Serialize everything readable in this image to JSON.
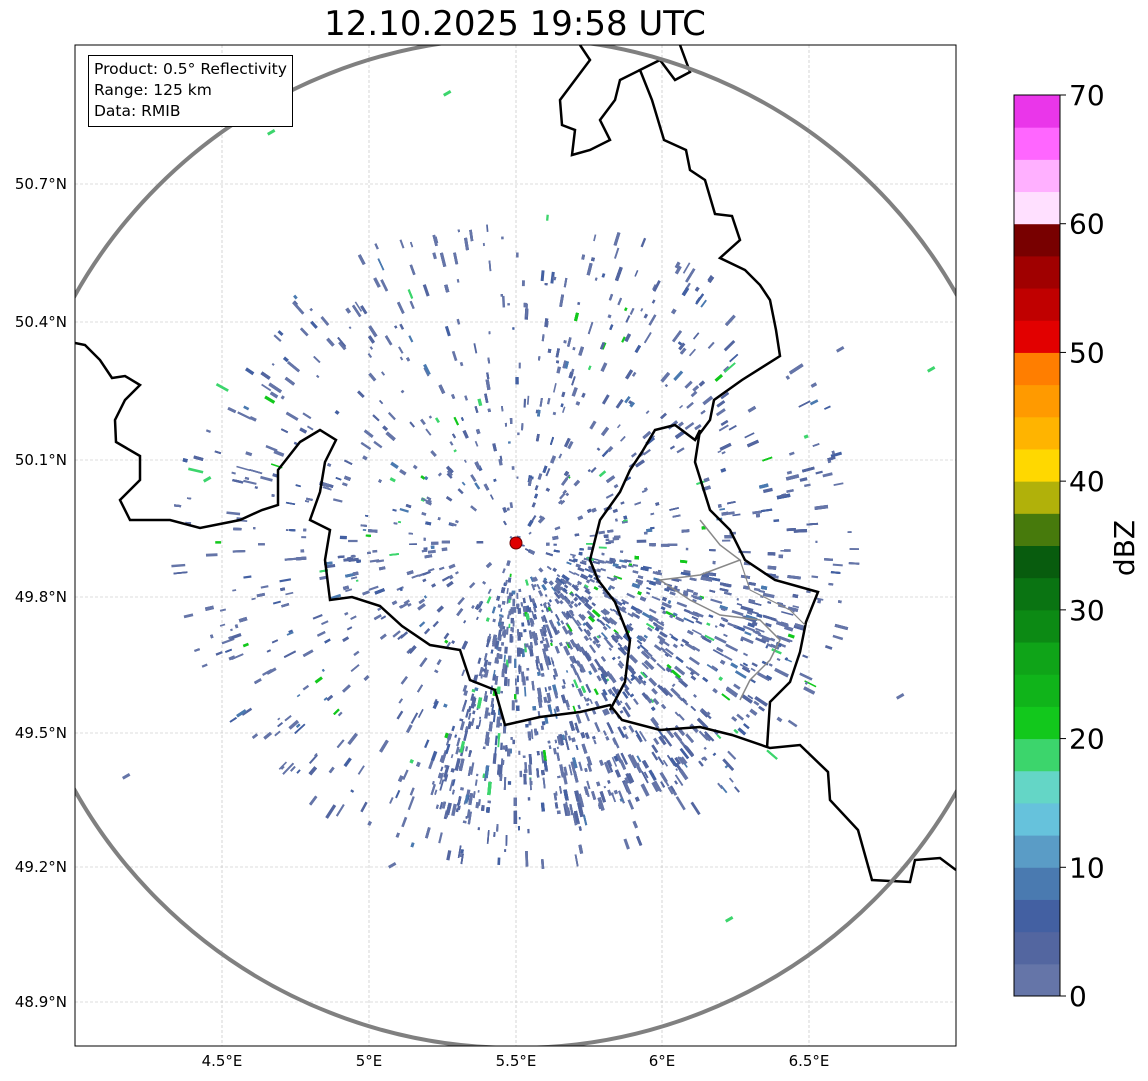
{
  "title": "12.10.2025 19:58 UTC",
  "info_box": {
    "product": "Product: 0.5° Reflectivity",
    "range": "Range: 125 km",
    "data": "Data: RMIB"
  },
  "axes": {
    "lon_ticks": [
      "4.5°E",
      "5°E",
      "5.5°E",
      "6°E",
      "6.5°E"
    ],
    "lat_ticks": [
      "50.7°N",
      "50.4°N",
      "50.1°N",
      "49.8°N",
      "49.5°N",
      "49.2°N",
      "48.9°N"
    ],
    "lon_range": [
      4.0,
      7.0
    ],
    "lat_range": [
      48.8,
      50.99
    ]
  },
  "radar": {
    "site_lon": 5.5,
    "site_lat": 49.91,
    "range_km": 125,
    "site_color": "#e00000",
    "range_ring_color": "#808080"
  },
  "colorbar": {
    "label": "dBZ",
    "min": 0,
    "max": 70,
    "step": 2.5,
    "ticks": [
      "0",
      "10",
      "20",
      "30",
      "40",
      "50",
      "60",
      "70"
    ],
    "colors": [
      "#6575a8",
      "#5366a0",
      "#4360a2",
      "#4a7ab0",
      "#5a9cc6",
      "#66c2dc",
      "#64d6c6",
      "#3cd56c",
      "#12c81c",
      "#10b41a",
      "#0fa418",
      "#0c8a14",
      "#0a7412",
      "#085c0e",
      "#477a0c",
      "#b1b10a",
      "#ffd800",
      "#ffb400",
      "#ff9a00",
      "#ff7e00",
      "#e20000",
      "#c00000",
      "#a00000",
      "#780000",
      "#ffe0ff",
      "#ffb0ff",
      "#ff66ff",
      "#ea36ea"
    ]
  }
}
